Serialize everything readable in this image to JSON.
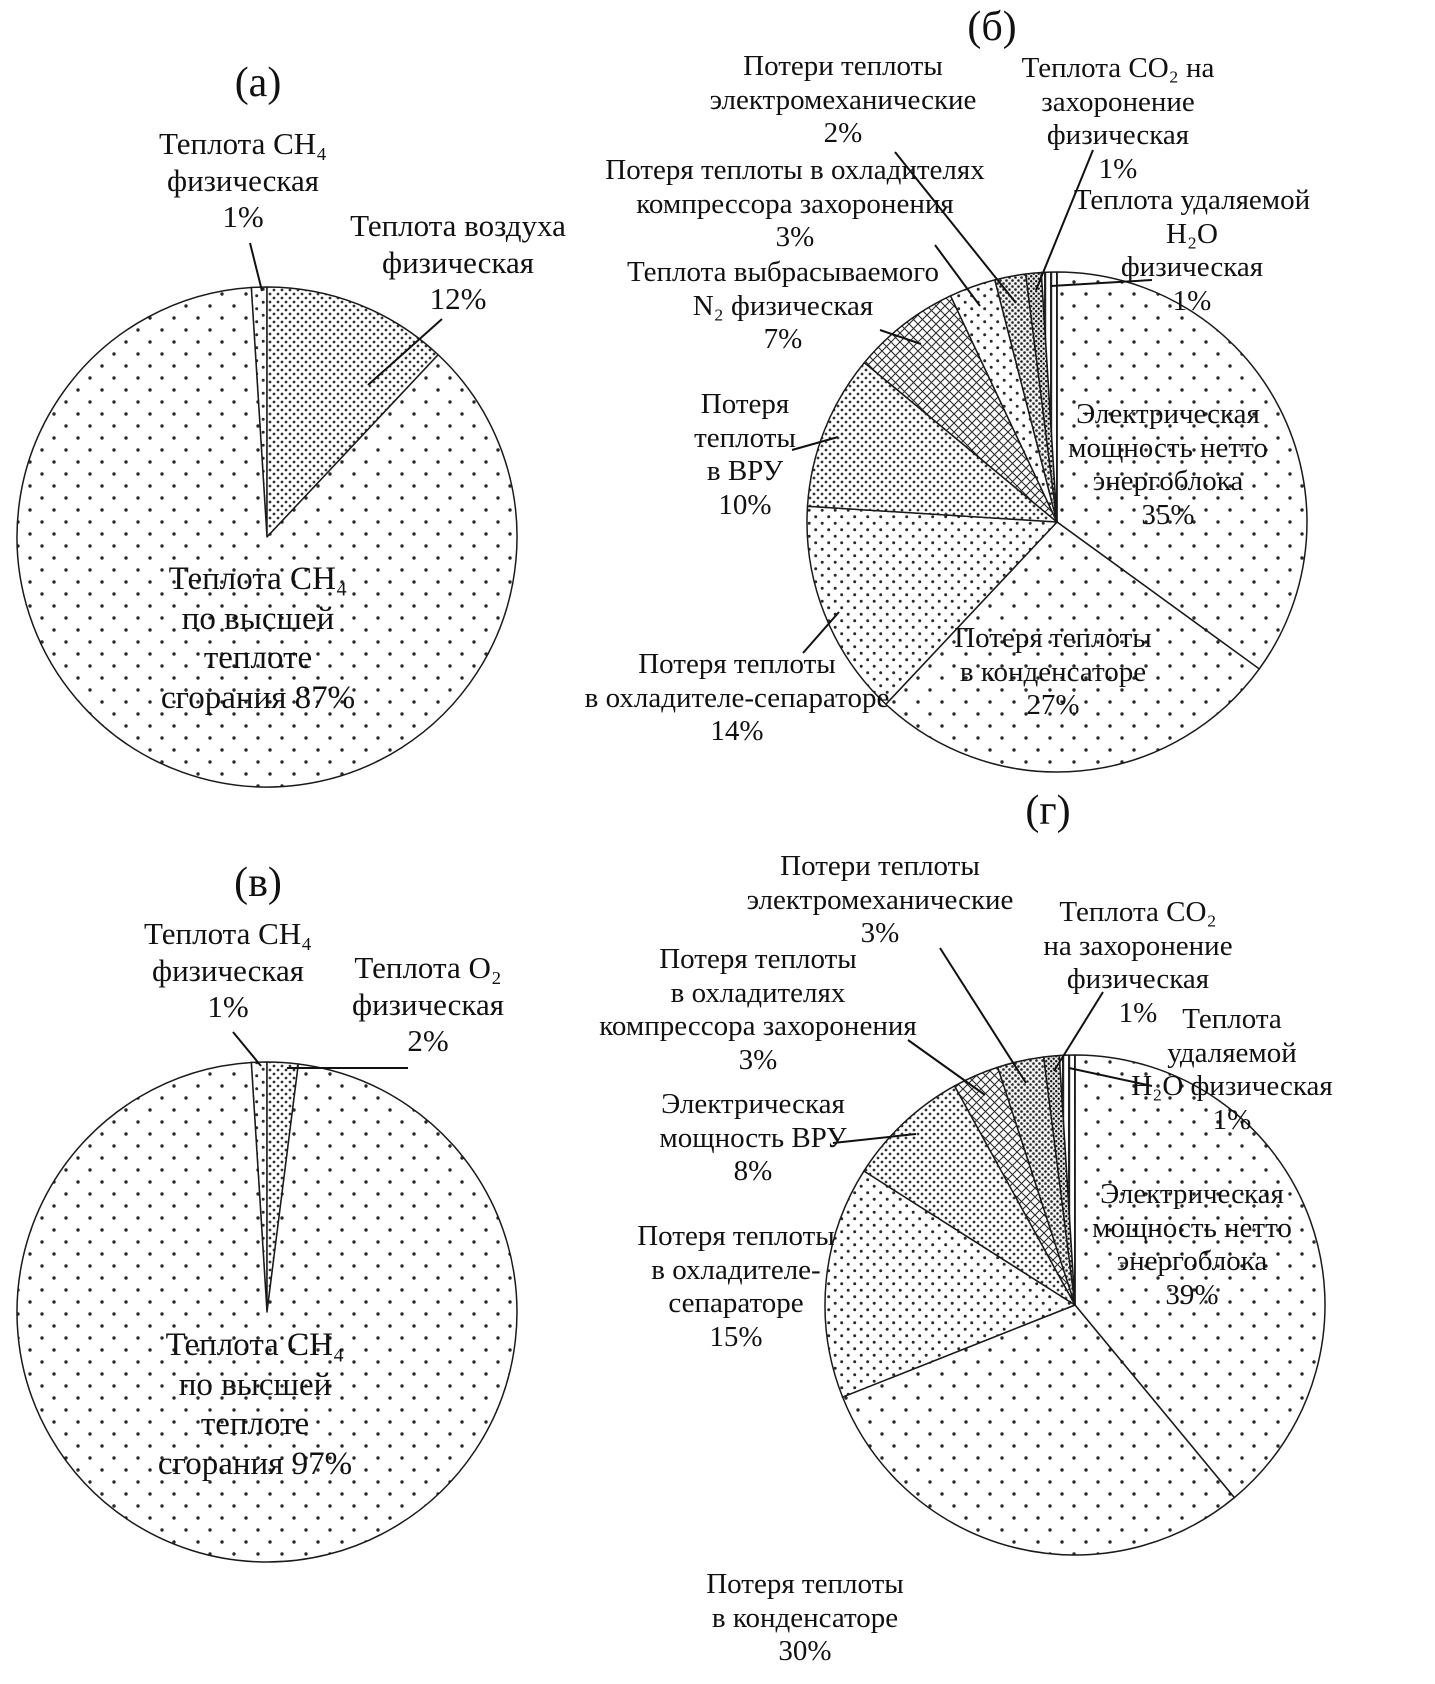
{
  "chart_data": [
    {
      "id": "a",
      "type": "pie",
      "title": "(а)",
      "start_angle_deg": -3.6,
      "legend_position": "outside-labels",
      "slices": [
        {
          "label": "Теплота CH₄ физическая",
          "value": 1,
          "unit": "%",
          "pattern": "med",
          "label_lines": [
            "Теплота CH₄",
            "физическая",
            "1%"
          ]
        },
        {
          "label": "Теплота воздуха физическая",
          "value": 12,
          "unit": "%",
          "pattern": "dense",
          "label_lines": [
            "Теплота воздуха",
            "физическая",
            "12%"
          ]
        },
        {
          "label": "Теплота CH₄ по высшей теплоте сгорания",
          "value": 87,
          "unit": "%",
          "pattern": "sparse",
          "label_lines": [
            "Теплота CH₄",
            "по высшей",
            "теплоте",
            "сгорания 87%"
          ]
        }
      ]
    },
    {
      "id": "b",
      "type": "pie",
      "title": "(б)",
      "start_angle_deg": 0,
      "legend_position": "outside-labels",
      "slices": [
        {
          "label": "Электрическая мощность нетто энергоблока",
          "value": 35,
          "unit": "%",
          "pattern": "sparse",
          "label_lines": [
            "Электрическая",
            "мощность нетто",
            "энергоблока",
            "35%"
          ]
        },
        {
          "label": "Потеря теплоты в конденсаторе",
          "value": 27,
          "unit": "%",
          "pattern": "sparse",
          "label_lines": [
            "Потеря теплоты",
            "в конденсаторе",
            "27%"
          ]
        },
        {
          "label": "Потеря теплоты в охладителе-сепараторе",
          "value": 14,
          "unit": "%",
          "pattern": "med",
          "label_lines": [
            "Потеря теплоты",
            "в охладителе-сепараторе",
            "14%"
          ]
        },
        {
          "label": "Потеря теплоты в ВРУ",
          "value": 10,
          "unit": "%",
          "pattern": "dense",
          "label_lines": [
            "Потеря",
            "теплоты",
            "в ВРУ",
            "10%"
          ]
        },
        {
          "label": "Теплота выбрасываемого N₂ физическая",
          "value": 7,
          "unit": "%",
          "pattern": "xhatch",
          "label_lines": [
            "Теплота выбрасываемого",
            "N₂ физическая",
            "7%"
          ]
        },
        {
          "label": "Потеря теплоты в охладителях компрессора захоронения",
          "value": 3,
          "unit": "%",
          "pattern": "med",
          "label_lines": [
            "Потеря теплоты в охладителях",
            "компрессора захоронения",
            "3%"
          ]
        },
        {
          "label": "Потери теплоты электромеханические",
          "value": 2,
          "unit": "%",
          "pattern": "vdense",
          "label_lines": [
            "Потери теплоты",
            "электромеханические",
            "2%"
          ]
        },
        {
          "label": "Теплота CO₂ на захоронение физическая",
          "value": 1,
          "unit": "%",
          "pattern": "dark",
          "label_lines": [
            "Теплота CO₂ на захоронение",
            "физическая",
            "1%"
          ]
        },
        {
          "label": "Теплота удаляемой H₂O физическая",
          "value": 1,
          "unit": "%",
          "pattern": "vlines",
          "label_lines": [
            "Теплота удаляемой H₂O",
            "физическая",
            "1%"
          ]
        }
      ]
    },
    {
      "id": "v",
      "type": "pie",
      "title": "(в)",
      "start_angle_deg": -3.6,
      "legend_position": "outside-labels",
      "slices": [
        {
          "label": "Теплота CH₄ физическая",
          "value": 1,
          "unit": "%",
          "pattern": "med",
          "label_lines": [
            "Теплота CH₄",
            "физическая",
            "1%"
          ]
        },
        {
          "label": "Теплота O₂ физическая",
          "value": 2,
          "unit": "%",
          "pattern": "dense",
          "label_lines": [
            "Теплота O₂",
            "физическая",
            "2%"
          ]
        },
        {
          "label": "Теплота CH₄ по высшей теплоте сгорания",
          "value": 97,
          "unit": "%",
          "pattern": "sparse",
          "label_lines": [
            "Теплота CH₄",
            "по высшей",
            "теплоте",
            "сгорания 97%"
          ]
        }
      ]
    },
    {
      "id": "g",
      "type": "pie",
      "title": "(г)",
      "start_angle_deg": 0,
      "legend_position": "outside-labels",
      "slices": [
        {
          "label": "Электрическая мощность нетто энергоблока",
          "value": 39,
          "unit": "%",
          "pattern": "sparse",
          "label_lines": [
            "Электрическая",
            "мощность нетто",
            "энергоблока",
            "39%"
          ]
        },
        {
          "label": "Потеря теплоты в конденсаторе",
          "value": 30,
          "unit": "%",
          "pattern": "sparse",
          "label_lines": [
            "Потеря теплоты",
            "в конденсаторе",
            "30%"
          ]
        },
        {
          "label": "Потеря теплоты в охладителе-сепараторе",
          "value": 15,
          "unit": "%",
          "pattern": "med",
          "label_lines": [
            "Потеря теплоты",
            "в охладителе-",
            "сепараторе",
            "15%"
          ]
        },
        {
          "label": "Электрическая мощность ВРУ",
          "value": 8,
          "unit": "%",
          "pattern": "dense",
          "label_lines": [
            "Электрическая",
            "мощность ВРУ",
            "8%"
          ]
        },
        {
          "label": "Потеря теплоты в охладителях компрессора захоронения",
          "value": 3,
          "unit": "%",
          "pattern": "xhatch",
          "label_lines": [
            "Потеря теплоты",
            "в охладителях",
            "компрессора захоронения",
            "3%"
          ]
        },
        {
          "label": "Потери теплоты электромеханические",
          "value": 3,
          "unit": "%",
          "pattern": "vdense",
          "label_lines": [
            "Потери теплоты",
            "электромеханические",
            "3%"
          ]
        },
        {
          "label": "Теплота CO₂ на захоронение физическая",
          "value": 1,
          "unit": "%",
          "pattern": "dark",
          "label_lines": [
            "Теплота CO₂",
            "на захоронение физическая",
            "1%"
          ]
        },
        {
          "label": "Теплота удаляемой H₂O физическая",
          "value": 1,
          "unit": "%",
          "pattern": "vlines",
          "label_lines": [
            "Теплота удаляемой",
            "H₂O физическая",
            "1%"
          ]
        }
      ]
    }
  ]
}
